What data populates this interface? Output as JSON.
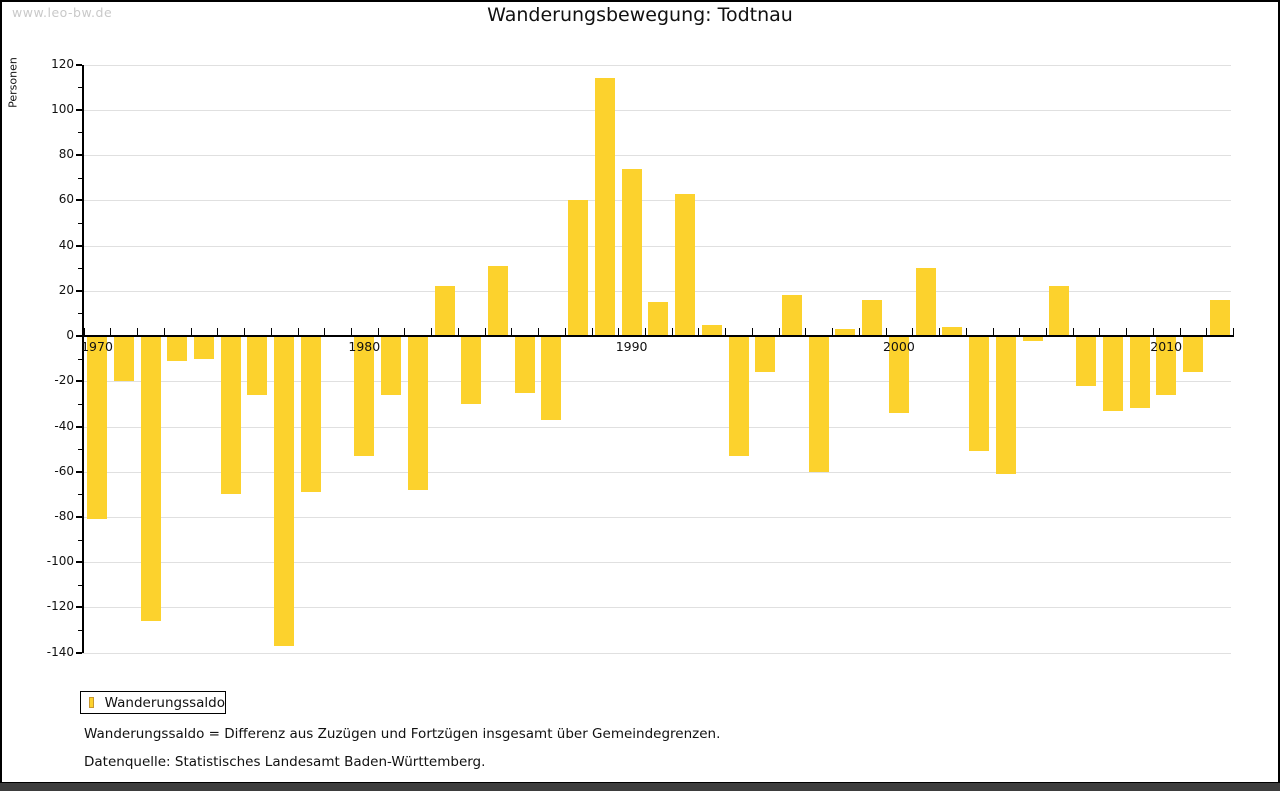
{
  "page": {
    "watermark": "www.leo-bw.de",
    "title": "Wanderungsbewegung: Todtnau"
  },
  "axis": {
    "y_title": "Personen"
  },
  "legend": {
    "label": "Wanderungssaldo"
  },
  "footnotes": {
    "definition": "Wanderungssaldo = Differenz aus Zuzügen und Fortzügen insgesamt über Gemeindegrenzen.",
    "source": "Datenquelle: Statistisches Landesamt Baden-Württemberg."
  },
  "colors": {
    "bar_fill": "#fcd22d",
    "swatch_border": "#c8982f",
    "gridline": "#e0e0e0",
    "axis": "#000000",
    "watermark_text": "#c9c9c9",
    "bottom_strip": "#3d3d3d"
  },
  "chart_data": {
    "type": "bar",
    "title": "Wanderungsbewegung: Todtnau",
    "ylabel": "Personen",
    "xlabel": "",
    "series_name": "Wanderungssaldo",
    "ylim": [
      -140,
      120
    ],
    "ytick_step": 20,
    "yticks_labeled": [
      120,
      100,
      80,
      60,
      40,
      20,
      0,
      -20,
      -40,
      -60,
      -80,
      -100,
      -120,
      -140
    ],
    "xtick_labels": [
      "1970",
      "1980",
      "1990",
      "2000",
      "2010"
    ],
    "grid": true,
    "legend_position": "bottom-left",
    "years": [
      1970,
      1971,
      1972,
      1973,
      1974,
      1975,
      1976,
      1977,
      1978,
      1979,
      1980,
      1981,
      1982,
      1983,
      1984,
      1985,
      1986,
      1987,
      1988,
      1989,
      1990,
      1991,
      1992,
      1993,
      1994,
      1995,
      1996,
      1997,
      1998,
      1999,
      2000,
      2001,
      2002,
      2003,
      2004,
      2005,
      2006,
      2007,
      2008,
      2009,
      2010,
      2011,
      2012
    ],
    "values": [
      -81,
      -20,
      -126,
      -11,
      -10,
      -70,
      -26,
      -137,
      -69,
      0,
      -53,
      -26,
      -68,
      22,
      -30,
      31,
      -25,
      -37,
      60,
      114,
      74,
      15,
      63,
      5,
      -53,
      -16,
      18,
      -60,
      3,
      16,
      -34,
      30,
      4,
      -51,
      -61,
      -2,
      22,
      -22,
      -33,
      -32,
      -26,
      -16,
      16
    ]
  }
}
